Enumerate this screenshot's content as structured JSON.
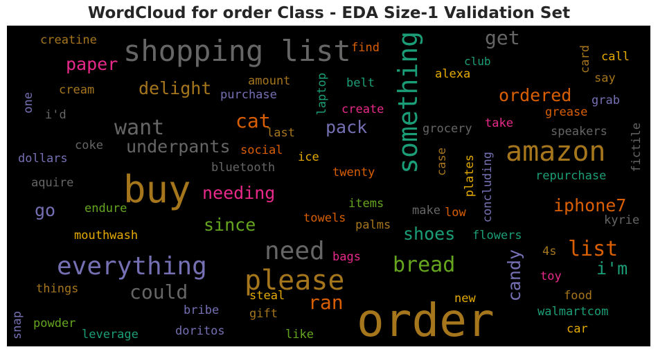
{
  "title": "WordCloud for order Class - EDA Size-1 Validation Set",
  "colors": {
    "background": "#000000",
    "teal": "#1b9e77",
    "orange": "#d95f02",
    "purple": "#7570b3",
    "pink": "#e7298a",
    "green": "#66a61e",
    "gold": "#e6ab02",
    "brown": "#a6761d",
    "gray": "#666666"
  },
  "words": [
    {
      "text": "shopping list",
      "color": "#666666"
    },
    {
      "text": "something",
      "color": "#1b9e77"
    },
    {
      "text": "get",
      "color": "#666666"
    },
    {
      "text": "creatine",
      "color": "#a6761d"
    },
    {
      "text": "find",
      "color": "#d95f02"
    },
    {
      "text": "card",
      "color": "#a6761d"
    },
    {
      "text": "call",
      "color": "#e6ab02"
    },
    {
      "text": "club",
      "color": "#1b9e77"
    },
    {
      "text": "paper",
      "color": "#e7298a"
    },
    {
      "text": "alexa",
      "color": "#e6ab02"
    },
    {
      "text": "say",
      "color": "#a6761d"
    },
    {
      "text": "amount",
      "color": "#a6761d"
    },
    {
      "text": "belt",
      "color": "#1b9e77"
    },
    {
      "text": "delight",
      "color": "#a6761d"
    },
    {
      "text": "laptop",
      "color": "#1b9e77"
    },
    {
      "text": "ordered",
      "color": "#d95f02"
    },
    {
      "text": "grab",
      "color": "#7570b3"
    },
    {
      "text": "one",
      "color": "#7570b3"
    },
    {
      "text": "cream",
      "color": "#a6761d"
    },
    {
      "text": "purchase",
      "color": "#7570b3"
    },
    {
      "text": "create",
      "color": "#e7298a"
    },
    {
      "text": "grease",
      "color": "#d95f02"
    },
    {
      "text": "i'd",
      "color": "#666666"
    },
    {
      "text": "want",
      "color": "#666666"
    },
    {
      "text": "cat",
      "color": "#d95f02"
    },
    {
      "text": "pack",
      "color": "#7570b3"
    },
    {
      "text": "take",
      "color": "#e7298a"
    },
    {
      "text": "fictile",
      "color": "#666666"
    },
    {
      "text": "last",
      "color": "#a6761d"
    },
    {
      "text": "grocery",
      "color": "#666666"
    },
    {
      "text": "speakers",
      "color": "#666666"
    },
    {
      "text": "amazon",
      "color": "#a6761d"
    },
    {
      "text": "underpants",
      "color": "#666666"
    },
    {
      "text": "coke",
      "color": "#666666"
    },
    {
      "text": "social",
      "color": "#d95f02"
    },
    {
      "text": "dollars",
      "color": "#7570b3"
    },
    {
      "text": "ice",
      "color": "#e6ab02"
    },
    {
      "text": "case",
      "color": "#a6761d"
    },
    {
      "text": "bluetooth",
      "color": "#666666"
    },
    {
      "text": "concluding",
      "color": "#7570b3"
    },
    {
      "text": "plates",
      "color": "#e6ab02"
    },
    {
      "text": "twenty",
      "color": "#d95f02"
    },
    {
      "text": "repurchase",
      "color": "#1b9e77"
    },
    {
      "text": "buy",
      "color": "#a6761d"
    },
    {
      "text": "aquire",
      "color": "#666666"
    },
    {
      "text": "needing",
      "color": "#e7298a"
    },
    {
      "text": "iphone7",
      "color": "#d95f02"
    },
    {
      "text": "items",
      "color": "#66a61e"
    },
    {
      "text": "go",
      "color": "#7570b3"
    },
    {
      "text": "endure",
      "color": "#66a61e"
    },
    {
      "text": "make",
      "color": "#666666"
    },
    {
      "text": "low",
      "color": "#d95f02"
    },
    {
      "text": "since",
      "color": "#66a61e"
    },
    {
      "text": "towels",
      "color": "#d95f02"
    },
    {
      "text": "palms",
      "color": "#a6761d"
    },
    {
      "text": "kyrie",
      "color": "#666666"
    },
    {
      "text": "shoes",
      "color": "#1b9e77"
    },
    {
      "text": "mouthwash",
      "color": "#e6ab02"
    },
    {
      "text": "flowers",
      "color": "#1b9e77"
    },
    {
      "text": "need",
      "color": "#666666"
    },
    {
      "text": "list",
      "color": "#d95f02"
    },
    {
      "text": "bags",
      "color": "#e7298a"
    },
    {
      "text": "candy",
      "color": "#7570b3"
    },
    {
      "text": "4s",
      "color": "#a6761d"
    },
    {
      "text": "i'm",
      "color": "#1b9e77"
    },
    {
      "text": "everything",
      "color": "#7570b3"
    },
    {
      "text": "bread",
      "color": "#66a61e"
    },
    {
      "text": "please",
      "color": "#a6761d"
    },
    {
      "text": "toy",
      "color": "#e7298a"
    },
    {
      "text": "things",
      "color": "#a6761d"
    },
    {
      "text": "could",
      "color": "#666666"
    },
    {
      "text": "ran",
      "color": "#d95f02"
    },
    {
      "text": "steal",
      "color": "#e6ab02"
    },
    {
      "text": "food",
      "color": "#a6761d"
    },
    {
      "text": "new",
      "color": "#e6ab02"
    },
    {
      "text": "snap",
      "color": "#7570b3"
    },
    {
      "text": "bribe",
      "color": "#7570b3"
    },
    {
      "text": "gift",
      "color": "#a6761d"
    },
    {
      "text": "walmartcom",
      "color": "#1b9e77"
    },
    {
      "text": "powder",
      "color": "#66a61e"
    },
    {
      "text": "order",
      "color": "#a6761d"
    },
    {
      "text": "doritos",
      "color": "#7570b3"
    },
    {
      "text": "car",
      "color": "#e6ab02"
    },
    {
      "text": "leverage",
      "color": "#1b9e77"
    },
    {
      "text": "like",
      "color": "#66a61e"
    }
  ]
}
